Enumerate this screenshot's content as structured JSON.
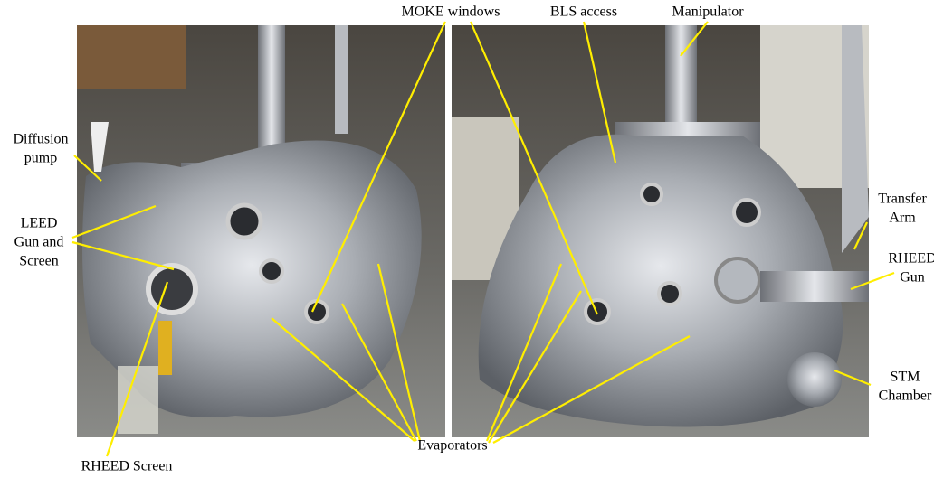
{
  "labels": [
    {
      "lines": [
        "MOKE windows"
      ]
    },
    {
      "lines": [
        "BLS access"
      ]
    },
    {
      "lines": [
        "Manipulator"
      ]
    },
    {
      "lines": [
        "Diffusion",
        "pump"
      ]
    },
    {
      "lines": [
        "LEED",
        "Gun and",
        "Screen"
      ]
    },
    {
      "lines": [
        "RHEED Screen"
      ]
    },
    {
      "lines": [
        "Evaporators"
      ]
    },
    {
      "lines": [
        "Transfer",
        "Arm"
      ]
    },
    {
      "lines": [
        "RHEED",
        "Gun"
      ]
    },
    {
      "lines": [
        "STM",
        "Chamber"
      ]
    }
  ]
}
